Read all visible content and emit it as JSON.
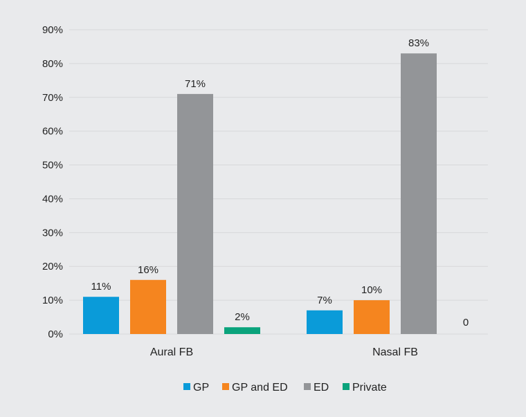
{
  "chart_data": {
    "type": "bar",
    "categories": [
      "Aural FB",
      "Nasal FB"
    ],
    "series": [
      {
        "name": "GP",
        "values": [
          11,
          7
        ],
        "labels": [
          "11%",
          "7%"
        ],
        "color": "#0a9bd9"
      },
      {
        "name": "GP and ED",
        "values": [
          16,
          10
        ],
        "labels": [
          "16%",
          "10%"
        ],
        "color": "#f5851f"
      },
      {
        "name": "ED",
        "values": [
          71,
          83
        ],
        "labels": [
          "71%",
          "83%"
        ],
        "color": "#939598"
      },
      {
        "name": "Private",
        "values": [
          2,
          0
        ],
        "labels": [
          "2%",
          "0"
        ],
        "color": "#0aa37c"
      }
    ],
    "yticks": [
      "0%",
      "10%",
      "20%",
      "30%",
      "40%",
      "50%",
      "60%",
      "70%",
      "80%",
      "90%"
    ],
    "ylim": [
      0,
      90
    ],
    "grid": true,
    "legend": "bottom-center",
    "title": "",
    "xlabel": "",
    "ylabel": ""
  }
}
